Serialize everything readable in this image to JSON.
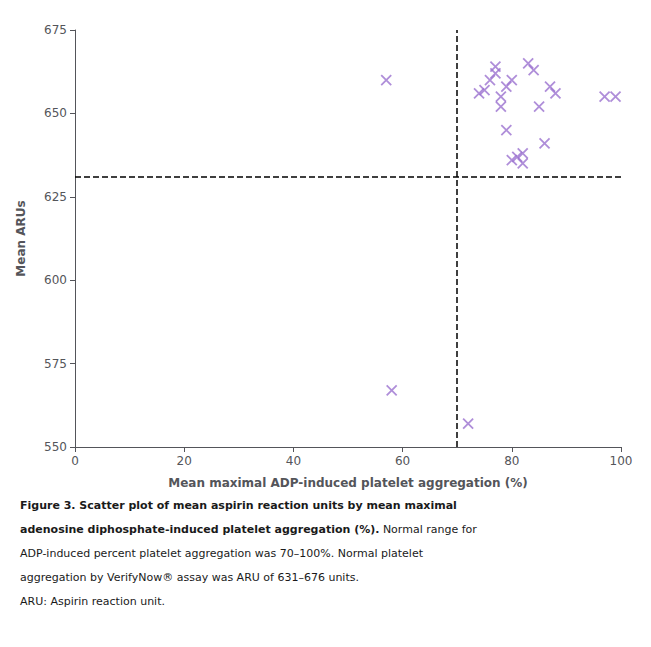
{
  "chart_data": {
    "type": "scatter",
    "x": [
      57,
      58,
      72,
      74,
      75,
      76,
      77,
      77,
      78,
      78,
      79,
      79,
      80,
      80,
      81,
      82,
      82,
      83,
      84,
      85,
      86,
      87,
      88,
      97,
      99
    ],
    "values": [
      660,
      567,
      557,
      656,
      657,
      660,
      662,
      664,
      652,
      655,
      645,
      658,
      636,
      660,
      637,
      635,
      638,
      665,
      663,
      652,
      641,
      658,
      656,
      655,
      655
    ],
    "color": "#9B72CF",
    "marker": "x",
    "hline": 631,
    "vline": 70,
    "line_style": "dashed",
    "xlim": [
      0,
      100
    ],
    "ylim": [
      550,
      675
    ],
    "xticks": [
      0,
      20,
      40,
      60,
      80,
      100
    ],
    "yticks": [
      550,
      575,
      600,
      625,
      650,
      675
    ],
    "xlabel": "Mean maximal ADP-induced platelet aggregation (%)",
    "ylabel": "Mean ARUs",
    "grid": false,
    "caption": [
      {
        "bold": "Figure 3. Scatter plot of mean aspirin reaction units by mean maximal"
      },
      {
        "bold": "adenosine diphosphate-induced platelet aggregation (%).",
        "normal": "Normal range for"
      },
      {
        "normal": "ADP-induced percent platelet aggregation was 70–100%. Normal platelet"
      },
      {
        "normal": "aggregation by VerifyNow® assay was ARU of 631–676 units."
      },
      {
        "normal": "ARU: Aspirin reaction unit."
      }
    ]
  }
}
